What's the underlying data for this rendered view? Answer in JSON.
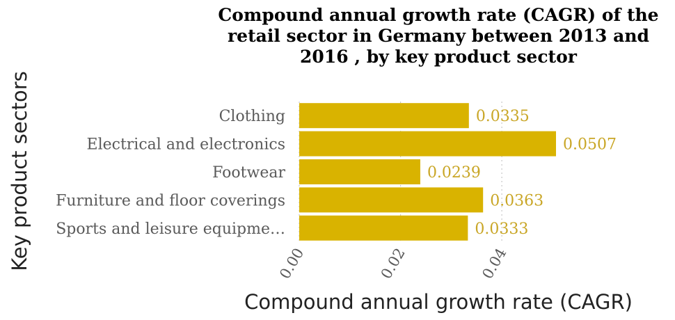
{
  "chart_data": {
    "type": "bar",
    "orientation": "horizontal",
    "title_lines": [
      "Compound annual growth rate (CAGR) of the",
      "retail sector in Germany between 2013 and",
      "2016 , by key product sector"
    ],
    "xlabel": "Compound annual growth rate (CAGR)",
    "ylabel": "Key product sectors",
    "categories": [
      "Clothing",
      "Electrical and electronics",
      "Footwear",
      "Furniture and floor coverings",
      "Sports and leisure equipme…"
    ],
    "values": [
      0.0335,
      0.0507,
      0.0239,
      0.0363,
      0.0333
    ],
    "value_labels": [
      "0.0335",
      "0.0507",
      "0.0239",
      "0.0363",
      "0.0333"
    ],
    "xlim": [
      0,
      0.0507
    ],
    "xticks": [
      0.0,
      0.02,
      0.04
    ],
    "xtick_labels": [
      "0.00",
      "0.02",
      "0.04"
    ],
    "grid": true,
    "legend": "none",
    "colors": {
      "bar": "#d9b300",
      "label": "#c9a626"
    }
  }
}
